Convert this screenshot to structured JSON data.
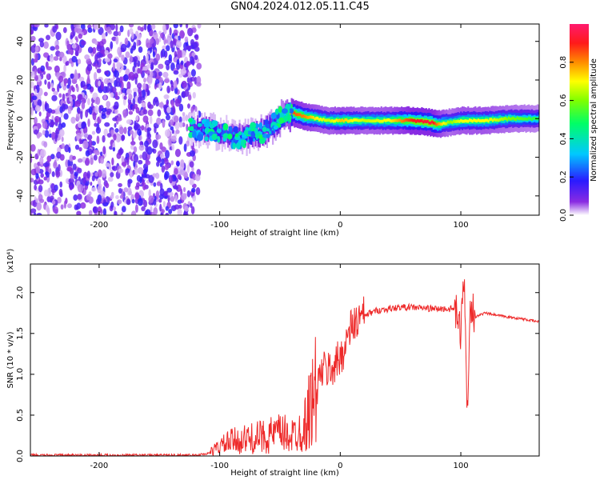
{
  "title": "GN04.2024.012.05.11.C45",
  "chart_data": [
    {
      "type": "heatmap",
      "xlabel": "Height of straight line (km)",
      "ylabel": "Frequency (Hz)",
      "xlim": [
        -257,
        165
      ],
      "ylim": [
        -50,
        49
      ],
      "xticks": [
        -200,
        -100,
        0,
        100
      ],
      "yticks": [
        -40,
        -20,
        0,
        20,
        40
      ],
      "colorbar": {
        "label": "Normalized spectral amplitude",
        "range": [
          0.0,
          1.0
        ],
        "ticks": [
          "0.0",
          "0.2",
          "0.4",
          "0.6",
          "0.8"
        ]
      },
      "noise_region_km": [
        -257,
        -125
      ],
      "ridge": {
        "x": [
          -125,
          -110,
          -95,
          -85,
          -75,
          -65,
          -55,
          -48,
          -40,
          -30,
          -20,
          -10,
          0,
          20,
          40,
          60,
          75,
          80,
          90,
          100,
          120,
          140,
          165
        ],
        "freq": [
          -5,
          -6,
          -8,
          -10,
          -9,
          -7,
          -3,
          2,
          3,
          1,
          0,
          -1,
          -1,
          -1,
          -1,
          -1,
          -2,
          -3,
          -2,
          -1,
          -1,
          0,
          0
        ],
        "amplitude": [
          0.2,
          0.3,
          0.25,
          0.3,
          0.3,
          0.35,
          0.4,
          0.55,
          0.85,
          0.8,
          0.7,
          0.65,
          0.75,
          0.65,
          0.7,
          0.9,
          0.95,
          0.8,
          0.6,
          0.7,
          0.7,
          0.6,
          0.5
        ]
      }
    },
    {
      "type": "line",
      "xlabel": "Height of straight line (km)",
      "ylabel": "SNR (10 * v/v)",
      "scale_label": "(x10⁴)",
      "xlim": [
        -257,
        165
      ],
      "ylim": [
        0,
        2.35
      ],
      "xticks": [
        -200,
        -100,
        0,
        100
      ],
      "yticks": [
        "0.0",
        "0.5",
        "1.0",
        "1.5",
        "2.0"
      ],
      "series": [
        {
          "color": "#ee2a2a",
          "x": [
            -257,
            -200,
            -150,
            -120,
            -110,
            -100,
            -90,
            -80,
            -70,
            -60,
            -50,
            -40,
            -30,
            -25,
            -20,
            -15,
            -10,
            -5,
            0,
            10,
            20,
            30,
            40,
            50,
            60,
            70,
            80,
            90,
            95,
            100,
            103,
            105,
            108,
            112,
            120,
            130,
            140,
            150,
            165
          ],
          "y": [
            0.01,
            0.01,
            0.01,
            0.01,
            0.03,
            0.12,
            0.18,
            0.2,
            0.22,
            0.25,
            0.28,
            0.25,
            0.35,
            0.6,
            0.8,
            1.05,
            1.05,
            1.1,
            1.2,
            1.6,
            1.72,
            1.78,
            1.8,
            1.82,
            1.82,
            1.81,
            1.8,
            1.8,
            1.8,
            1.5,
            2.3,
            0.45,
            1.9,
            1.7,
            1.75,
            1.72,
            1.7,
            1.68,
            1.64
          ]
        }
      ]
    }
  ]
}
